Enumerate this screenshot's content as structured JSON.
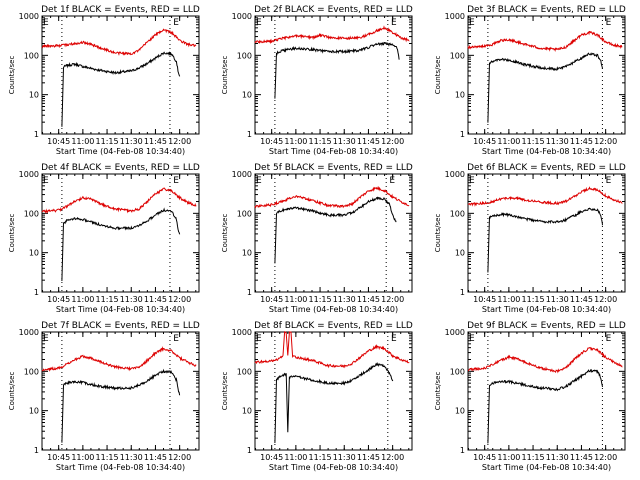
{
  "chart_data": [
    {
      "type": "line",
      "title": "Det 1f BLACK = Events, RED = LLD",
      "xlabel": "Start Time (04-Feb-08 10:34:40)",
      "ylabel": "Counts/sec",
      "x_ticks": [
        "10:45",
        "11:00",
        "11:15",
        "11:30",
        "11:45",
        "12:00"
      ],
      "y_ticks": [
        "1",
        "10",
        "100",
        "1000"
      ],
      "yscale": "log",
      "ylim": [
        1,
        1000
      ],
      "xlim": [
        "10:34:40",
        "12:12:00"
      ],
      "marker_text": "E",
      "vlines": [
        "10:47",
        "11:54"
      ],
      "marker_time": "11:56",
      "series": [
        {
          "color": "#000000",
          "x": [
            "10:47",
            "10:48",
            "10:50",
            "10:55",
            "11:00",
            "11:10",
            "11:20",
            "11:30",
            "11:35",
            "11:40",
            "11:45",
            "11:50",
            "11:55",
            "11:58",
            "11:59",
            "12:00"
          ],
          "y": [
            1.5,
            50,
            55,
            60,
            52,
            42,
            36,
            40,
            48,
            62,
            85,
            115,
            110,
            70,
            40,
            30
          ]
        },
        {
          "color": "#dd0000",
          "x": [
            "10:34:40",
            "10:45",
            "10:50",
            "10:55",
            "11:00",
            "11:05",
            "11:10",
            "11:20",
            "11:30",
            "11:35",
            "11:40",
            "11:45",
            "11:50",
            "11:55",
            "12:00",
            "12:05",
            "12:10"
          ],
          "y": [
            170,
            175,
            185,
            200,
            215,
            190,
            160,
            115,
            110,
            135,
            220,
            330,
            450,
            380,
            240,
            190,
            175
          ]
        }
      ]
    },
    {
      "type": "line",
      "title": "Det 2f BLACK = Events, RED = LLD",
      "xlabel": "Start Time (04-Feb-08 10:34:40)",
      "ylabel": "Counts/sec",
      "x_ticks": [
        "10:45",
        "11:00",
        "11:15",
        "11:30",
        "11:45",
        "12:00"
      ],
      "y_ticks": [
        "1",
        "10",
        "100",
        "1000"
      ],
      "yscale": "log",
      "ylim": [
        1,
        1000
      ],
      "xlim": [
        "10:34:40",
        "12:12:00"
      ],
      "marker_text": "E",
      "vlines": [
        "10:47",
        "11:57"
      ],
      "marker_time": "11:59",
      "series": [
        {
          "color": "#000000",
          "x": [
            "10:47",
            "10:48",
            "10:50",
            "10:55",
            "11:00",
            "11:10",
            "11:20",
            "11:30",
            "11:40",
            "11:45",
            "11:50",
            "11:55",
            "12:00",
            "12:03",
            "12:04"
          ],
          "y": [
            8,
            110,
            125,
            140,
            150,
            140,
            125,
            125,
            135,
            160,
            190,
            200,
            185,
            150,
            80
          ]
        },
        {
          "color": "#dd0000",
          "x": [
            "10:34:40",
            "10:45",
            "10:55",
            "11:00",
            "11:05",
            "11:10",
            "11:15",
            "11:20",
            "11:25",
            "11:30",
            "11:40",
            "11:45",
            "11:50",
            "11:55",
            "12:00",
            "12:05",
            "12:10"
          ],
          "y": [
            220,
            230,
            290,
            310,
            300,
            280,
            330,
            290,
            280,
            270,
            280,
            340,
            420,
            500,
            380,
            280,
            240
          ]
        }
      ]
    },
    {
      "type": "line",
      "title": "Det 3f BLACK = Events, RED = LLD",
      "xlabel": "Start Time (04-Feb-08 10:34:40)",
      "ylabel": "Counts/sec",
      "x_ticks": [
        "10:45",
        "11:00",
        "11:15",
        "11:30",
        "11:45",
        "12:00"
      ],
      "y_ticks": [
        "1",
        "10",
        "100",
        "1000"
      ],
      "yscale": "log",
      "ylim": [
        1,
        1000
      ],
      "xlim": [
        "10:34:40",
        "12:12:00"
      ],
      "marker_text": "E",
      "vlines": [
        "10:47",
        "11:58"
      ],
      "marker_time": "12:00",
      "series": [
        {
          "color": "#000000",
          "x": [
            "10:47",
            "10:48",
            "10:50",
            "10:55",
            "11:00",
            "11:10",
            "11:20",
            "11:30",
            "11:35",
            "11:40",
            "11:45",
            "11:50",
            "11:55",
            "11:57",
            "11:58"
          ],
          "y": [
            2,
            65,
            70,
            80,
            75,
            58,
            48,
            45,
            52,
            65,
            85,
            110,
            100,
            70,
            45
          ]
        },
        {
          "color": "#dd0000",
          "x": [
            "10:34:40",
            "10:45",
            "10:50",
            "10:55",
            "11:00",
            "11:05",
            "11:10",
            "11:20",
            "11:30",
            "11:35",
            "11:40",
            "11:45",
            "11:50",
            "11:55",
            "12:00",
            "12:05",
            "12:10"
          ],
          "y": [
            160,
            170,
            190,
            240,
            250,
            220,
            190,
            150,
            140,
            160,
            230,
            330,
            380,
            330,
            220,
            180,
            170
          ]
        }
      ]
    },
    {
      "type": "line",
      "title": "Det 4f BLACK = Events, RED = LLD",
      "xlabel": "Start Time (04-Feb-08 10:34:40)",
      "ylabel": "Counts/sec",
      "x_ticks": [
        "10:45",
        "11:00",
        "11:15",
        "11:30",
        "11:45",
        "12:00"
      ],
      "y_ticks": [
        "1",
        "10",
        "100",
        "1000"
      ],
      "yscale": "log",
      "ylim": [
        1,
        1000
      ],
      "xlim": [
        "10:34:40",
        "12:12:00"
      ],
      "marker_text": "E",
      "vlines": [
        "10:47",
        "11:54"
      ],
      "marker_time": "11:56",
      "series": [
        {
          "color": "#000000",
          "x": [
            "10:47",
            "10:48",
            "10:50",
            "10:55",
            "11:00",
            "11:10",
            "11:20",
            "11:30",
            "11:35",
            "11:40",
            "11:45",
            "11:50",
            "11:55",
            "11:58",
            "11:59",
            "12:00"
          ],
          "y": [
            2,
            55,
            65,
            75,
            70,
            52,
            42,
            42,
            50,
            65,
            90,
            120,
            115,
            70,
            40,
            30
          ]
        },
        {
          "color": "#dd0000",
          "x": [
            "10:34:40",
            "10:45",
            "10:50",
            "10:55",
            "11:00",
            "11:05",
            "11:10",
            "11:20",
            "11:30",
            "11:35",
            "11:40",
            "11:45",
            "11:50",
            "11:55",
            "12:00",
            "12:05",
            "12:10"
          ],
          "y": [
            110,
            120,
            150,
            200,
            250,
            230,
            180,
            130,
            115,
            130,
            200,
            310,
            420,
            370,
            250,
            190,
            160
          ]
        }
      ]
    },
    {
      "type": "line",
      "title": "Det 5f BLACK = Events, RED = LLD",
      "xlabel": "Start Time (04-Feb-08 10:34:40)",
      "ylabel": "Counts/sec",
      "x_ticks": [
        "10:45",
        "11:00",
        "11:15",
        "11:30",
        "11:45",
        "12:00"
      ],
      "y_ticks": [
        "1",
        "10",
        "100",
        "1000"
      ],
      "yscale": "log",
      "ylim": [
        1,
        1000
      ],
      "xlim": [
        "10:34:40",
        "12:12:00"
      ],
      "marker_text": "E",
      "vlines": [
        "10:47",
        "11:56"
      ],
      "marker_time": "11:58",
      "series": [
        {
          "color": "#000000",
          "x": [
            "10:47",
            "10:48",
            "10:50",
            "10:55",
            "11:00",
            "11:10",
            "11:20",
            "11:30",
            "11:35",
            "11:40",
            "11:45",
            "11:50",
            "11:55",
            "11:58",
            "12:00",
            "12:02"
          ],
          "y": [
            5,
            100,
            115,
            130,
            140,
            115,
            90,
            90,
            105,
            140,
            200,
            240,
            230,
            170,
            90,
            60
          ]
        },
        {
          "color": "#dd0000",
          "x": [
            "10:34:40",
            "10:45",
            "10:50",
            "10:55",
            "11:00",
            "11:05",
            "11:10",
            "11:20",
            "11:30",
            "11:35",
            "11:40",
            "11:45",
            "11:50",
            "11:55",
            "12:00",
            "12:05",
            "12:10"
          ],
          "y": [
            150,
            165,
            190,
            230,
            270,
            250,
            210,
            160,
            150,
            175,
            260,
            370,
            440,
            380,
            260,
            200,
            160
          ]
        }
      ]
    },
    {
      "type": "line",
      "title": "Det 6f BLACK = Events, RED = LLD",
      "xlabel": "Start Time (04-Feb-08 10:34:40)",
      "ylabel": "Counts/sec",
      "x_ticks": [
        "10:45",
        "11:00",
        "11:15",
        "11:30",
        "11:45",
        "12:00"
      ],
      "y_ticks": [
        "1",
        "10",
        "100",
        "1000"
      ],
      "yscale": "log",
      "ylim": [
        1,
        1000
      ],
      "xlim": [
        "10:34:40",
        "12:12:00"
      ],
      "marker_text": "E",
      "vlines": [
        "10:47",
        "11:58"
      ],
      "marker_time": "12:00",
      "series": [
        {
          "color": "#000000",
          "x": [
            "10:47",
            "10:48",
            "10:50",
            "10:55",
            "11:00",
            "11:10",
            "11:20",
            "11:30",
            "11:35",
            "11:40",
            "11:45",
            "11:50",
            "11:55",
            "11:57",
            "11:58"
          ],
          "y": [
            3,
            80,
            85,
            95,
            90,
            72,
            62,
            60,
            68,
            85,
            110,
            130,
            125,
            90,
            50
          ]
        },
        {
          "color": "#dd0000",
          "x": [
            "10:34:40",
            "10:45",
            "10:50",
            "10:55",
            "11:00",
            "11:05",
            "11:10",
            "11:20",
            "11:30",
            "11:35",
            "11:40",
            "11:45",
            "11:50",
            "11:55",
            "12:00",
            "12:05",
            "12:10"
          ],
          "y": [
            170,
            180,
            200,
            230,
            250,
            240,
            220,
            190,
            180,
            200,
            260,
            350,
            430,
            390,
            280,
            220,
            190
          ]
        }
      ]
    },
    {
      "type": "line",
      "title": "Det 7f BLACK = Events, RED = LLD",
      "xlabel": "Start Time (04-Feb-08 10:34:40)",
      "ylabel": "Counts/sec",
      "x_ticks": [
        "10:45",
        "11:00",
        "11:15",
        "11:30",
        "11:45",
        "12:00"
      ],
      "y_ticks": [
        "1",
        "10",
        "100",
        "1000"
      ],
      "yscale": "log",
      "ylim": [
        1,
        1000
      ],
      "xlim": [
        "10:34:40",
        "12:12:00"
      ],
      "marker_text": "E",
      "vlines": [
        "10:47",
        "11:54"
      ],
      "marker_time": "11:56",
      "series": [
        {
          "color": "#000000",
          "x": [
            "10:47",
            "10:48",
            "10:50",
            "10:55",
            "11:00",
            "11:10",
            "11:20",
            "11:30",
            "11:35",
            "11:40",
            "11:45",
            "11:50",
            "11:55",
            "11:58",
            "11:59",
            "12:00"
          ],
          "y": [
            1.5,
            45,
            50,
            55,
            52,
            42,
            37,
            38,
            45,
            58,
            80,
            100,
            95,
            60,
            35,
            25
          ]
        },
        {
          "color": "#dd0000",
          "x": [
            "10:34:40",
            "10:45",
            "10:50",
            "10:55",
            "11:00",
            "11:05",
            "11:10",
            "11:20",
            "11:30",
            "11:35",
            "11:40",
            "11:45",
            "11:50",
            "11:55",
            "12:00",
            "12:05",
            "12:10"
          ],
          "y": [
            110,
            120,
            150,
            200,
            240,
            220,
            180,
            130,
            115,
            130,
            190,
            290,
            380,
            330,
            220,
            170,
            140
          ]
        }
      ]
    },
    {
      "type": "line",
      "title": "Det 8f BLACK = Events, RED = LLD",
      "xlabel": "Start Time (04-Feb-08 10:34:40)",
      "ylabel": "Counts/sec",
      "x_ticks": [
        "10:45",
        "11:00",
        "11:15",
        "11:30",
        "11:45",
        "12:00"
      ],
      "y_ticks": [
        "1",
        "10",
        "100",
        "1000"
      ],
      "yscale": "log",
      "ylim": [
        1,
        1000
      ],
      "xlim": [
        "10:34:40",
        "12:12:00"
      ],
      "marker_text": "E",
      "vlines": [
        "10:47",
        "11:57"
      ],
      "marker_time": "11:59",
      "series": [
        {
          "color": "#000000",
          "x": [
            "10:47",
            "10:48",
            "10:50",
            "10:52",
            "10:54",
            "10:55",
            "10:56",
            "10:57",
            "11:00",
            "11:10",
            "11:20",
            "11:30",
            "11:35",
            "11:40",
            "11:45",
            "11:50",
            "11:55",
            "11:58",
            "12:00"
          ],
          "y": [
            1.5,
            60,
            75,
            80,
            85,
            3,
            70,
            75,
            75,
            60,
            50,
            50,
            60,
            80,
            110,
            150,
            140,
            90,
            60
          ]
        },
        {
          "color": "#dd0000",
          "x": [
            "10:34:40",
            "10:45",
            "10:50",
            "10:52",
            "10:53",
            "10:54",
            "10:55",
            "10:56",
            "10:57",
            "10:58",
            "11:00",
            "11:10",
            "11:20",
            "11:30",
            "11:35",
            "11:40",
            "11:45",
            "11:50",
            "11:55",
            "12:00",
            "12:05",
            "12:10"
          ],
          "y": [
            170,
            185,
            210,
            240,
            1000,
            1000,
            250,
            1000,
            1000,
            250,
            230,
            190,
            140,
            135,
            160,
            230,
            330,
            420,
            380,
            250,
            200,
            170
          ]
        }
      ]
    },
    {
      "type": "line",
      "title": "Det 9f BLACK = Events, RED = LLD",
      "xlabel": "Start Time (04-Feb-08 10:34:40)",
      "ylabel": "Counts/sec",
      "x_ticks": [
        "10:45",
        "11:00",
        "11:15",
        "11:30",
        "11:45",
        "12:00"
      ],
      "y_ticks": [
        "1",
        "10",
        "100",
        "1000"
      ],
      "yscale": "log",
      "ylim": [
        1,
        1000
      ],
      "xlim": [
        "10:34:40",
        "12:12:00"
      ],
      "marker_text": "E",
      "vlines": [
        "10:47",
        "11:58"
      ],
      "marker_time": "12:00",
      "series": [
        {
          "color": "#000000",
          "x": [
            "10:47",
            "10:48",
            "10:50",
            "10:55",
            "11:00",
            "11:10",
            "11:20",
            "11:30",
            "11:35",
            "11:40",
            "11:45",
            "11:50",
            "11:55",
            "11:57",
            "11:58"
          ],
          "y": [
            1.5,
            45,
            50,
            55,
            55,
            45,
            38,
            35,
            40,
            55,
            75,
            105,
            100,
            70,
            40
          ]
        },
        {
          "color": "#dd0000",
          "x": [
            "10:34:40",
            "10:45",
            "10:50",
            "10:55",
            "11:00",
            "11:05",
            "11:10",
            "11:20",
            "11:30",
            "11:35",
            "11:40",
            "11:45",
            "11:50",
            "11:55",
            "12:00",
            "12:05",
            "12:10"
          ],
          "y": [
            110,
            120,
            150,
            190,
            230,
            210,
            170,
            120,
            100,
            120,
            190,
            290,
            390,
            340,
            230,
            170,
            140
          ]
        }
      ]
    }
  ]
}
